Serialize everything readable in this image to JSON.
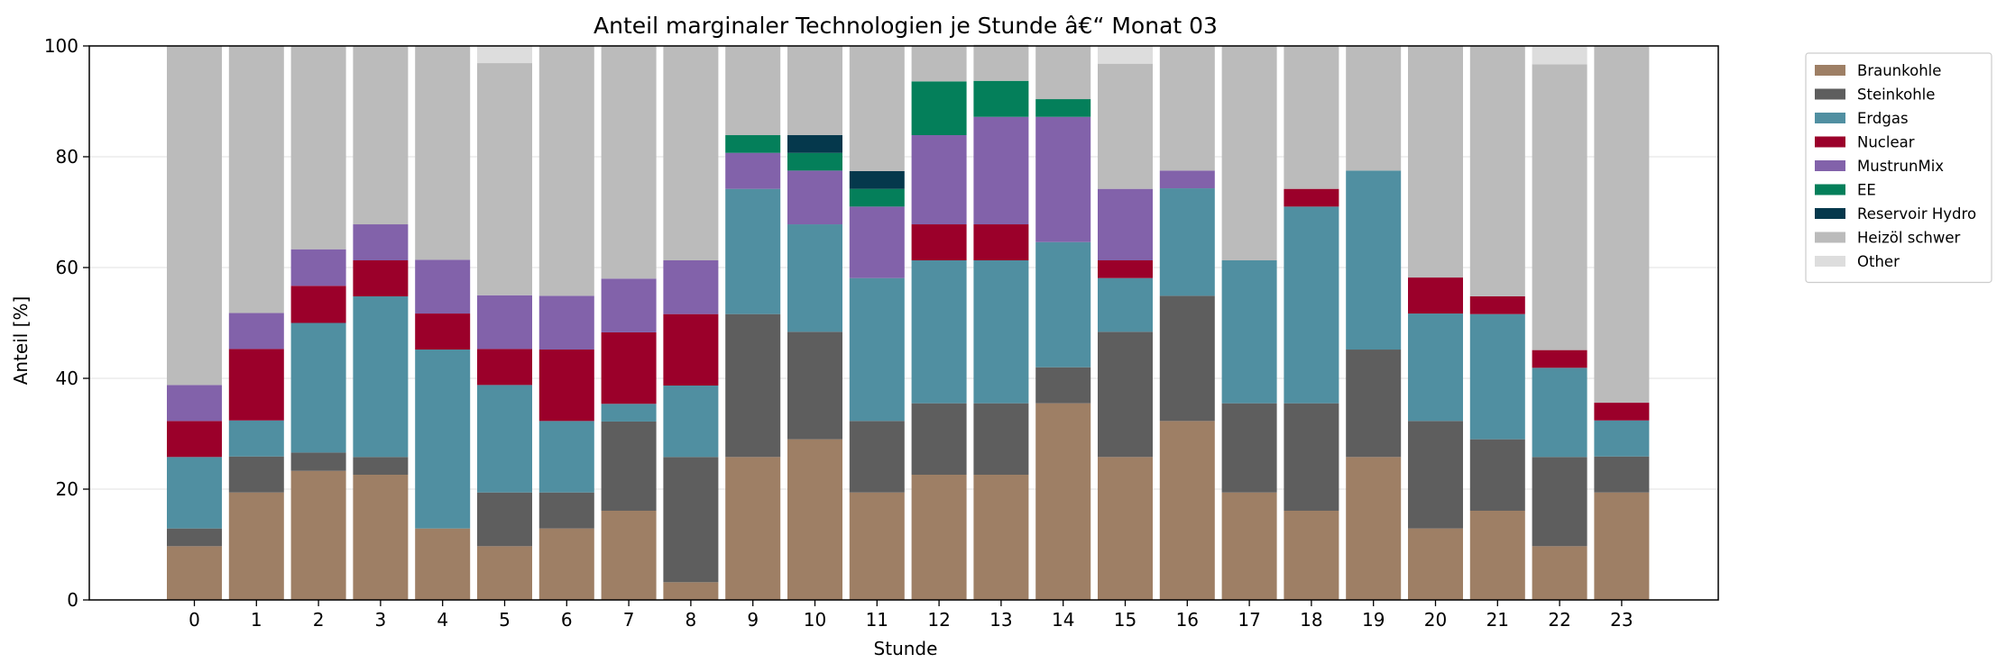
{
  "chart_data": {
    "type": "bar",
    "stacked": true,
    "title": "Anteil marginaler Technologien je Stunde â€“ Monat 03",
    "xlabel": "Stunde",
    "ylabel": "Anteil [%]",
    "ylim": [
      0,
      100
    ],
    "yticks": [
      "0",
      "20",
      "40",
      "60",
      "80",
      "100"
    ],
    "categories": [
      "0",
      "1",
      "2",
      "3",
      "4",
      "5",
      "6",
      "7",
      "8",
      "9",
      "10",
      "11",
      "12",
      "13",
      "14",
      "15",
      "16",
      "17",
      "18",
      "19",
      "20",
      "21",
      "22",
      "23"
    ],
    "grid": "horizontal",
    "legend_position": "outside-top-right",
    "series": [
      {
        "name": "Braunkohle",
        "color": "#9e7f65",
        "values": [
          9.7,
          19.4,
          23.3,
          22.6,
          12.9,
          9.7,
          12.9,
          16.1,
          3.2,
          25.8,
          29.0,
          19.4,
          22.6,
          22.6,
          35.5,
          25.8,
          32.3,
          19.4,
          16.1,
          25.8,
          12.9,
          16.1,
          9.7,
          19.4
        ]
      },
      {
        "name": "Steinkohle",
        "color": "#5e5e5e",
        "values": [
          3.2,
          6.5,
          3.3,
          3.2,
          0,
          9.7,
          6.5,
          16.1,
          22.6,
          25.8,
          19.4,
          12.9,
          12.9,
          12.9,
          6.5,
          22.6,
          22.6,
          16.1,
          19.4,
          19.4,
          19.4,
          12.9,
          16.1,
          6.5
        ]
      },
      {
        "name": "Erdgas",
        "color": "#508fa1",
        "values": [
          12.9,
          6.5,
          23.4,
          29.0,
          32.3,
          19.4,
          12.9,
          3.2,
          12.9,
          22.6,
          19.4,
          25.8,
          25.8,
          25.8,
          22.6,
          9.7,
          19.4,
          25.8,
          35.5,
          32.3,
          19.4,
          22.6,
          16.1,
          6.5
        ]
      },
      {
        "name": "Nuclear",
        "color": "#9b002a",
        "values": [
          6.5,
          12.9,
          6.7,
          6.5,
          6.5,
          6.5,
          12.9,
          12.9,
          12.9,
          0,
          0,
          0,
          6.5,
          6.5,
          0,
          3.2,
          0,
          0,
          3.2,
          0,
          6.5,
          3.2,
          3.2,
          3.2
        ]
      },
      {
        "name": "MustrunMix",
        "color": "#8262aa",
        "values": [
          6.5,
          6.5,
          6.6,
          6.5,
          9.7,
          9.7,
          9.7,
          9.7,
          9.7,
          6.5,
          9.7,
          12.9,
          16.1,
          19.4,
          22.6,
          12.9,
          3.2,
          0,
          0,
          0,
          0,
          0,
          0,
          0
        ]
      },
      {
        "name": "EE",
        "color": "#047f5a",
        "values": [
          0,
          0,
          0,
          0,
          0,
          0,
          0,
          0,
          0,
          3.2,
          3.2,
          3.2,
          9.7,
          6.5,
          3.2,
          0,
          0,
          0,
          0,
          0,
          0,
          0,
          0,
          0
        ]
      },
      {
        "name": "Reservoir Hydro",
        "color": "#05384c",
        "values": [
          0,
          0,
          0,
          0,
          0,
          0,
          0,
          0,
          0,
          0,
          3.2,
          3.2,
          0,
          0,
          0,
          0,
          0,
          0,
          0,
          0,
          0,
          0,
          0,
          0
        ]
      },
      {
        "name": "Heizöl schwer",
        "color": "#bbbbbb",
        "values": [
          61.2,
          48.2,
          36.7,
          32.2,
          38.6,
          41.9,
          45.1,
          42.1,
          38.7,
          16.1,
          16.1,
          22.6,
          6.4,
          6.5,
          9.6,
          22.6,
          22.5,
          38.7,
          25.8,
          22.5,
          41.8,
          45.2,
          51.6,
          64.4
        ]
      },
      {
        "name": "Other",
        "color": "#dddddd",
        "values": [
          0,
          0,
          0,
          0,
          0,
          3.2,
          0,
          0,
          0,
          0,
          0,
          0,
          0,
          0,
          0,
          3.2,
          0,
          0,
          0,
          0,
          0,
          0,
          3.2,
          0
        ]
      }
    ]
  }
}
